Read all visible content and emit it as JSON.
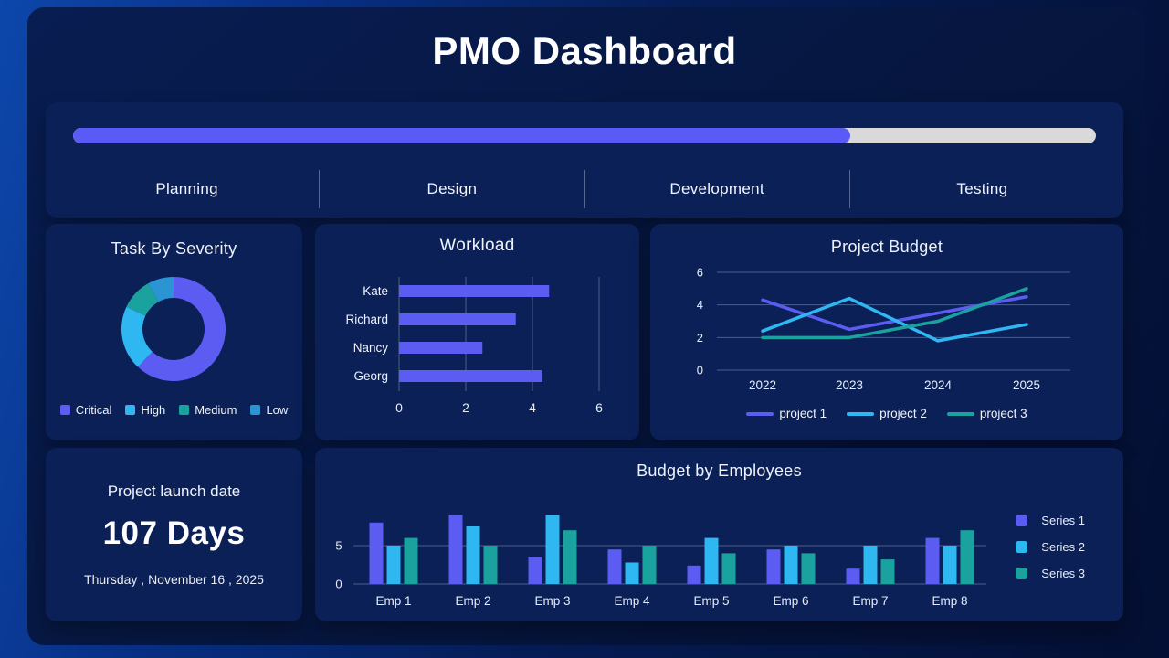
{
  "page": {
    "title": "PMO Dashboard"
  },
  "colors": {
    "purple": "#5c5cf2",
    "cyan": "#2eb7f0",
    "teal": "#1aa39e",
    "low_blue": "#2b95d3",
    "progress_fill": "#5a5af6",
    "progress_track": "#d9d9d9",
    "card_bg": "#0a2057",
    "grid_line": "rgba(255,255,255,0.28)"
  },
  "phase_bar": {
    "progress_percent": 76,
    "phases": [
      {
        "label": "Planning"
      },
      {
        "label": "Design"
      },
      {
        "label": "Development"
      },
      {
        "label": "Testing"
      }
    ]
  },
  "launch_card": {
    "title": "Project launch date",
    "days": "107 Days",
    "date": "Thursday , November 16 , 2025"
  },
  "chart_data": [
    {
      "id": "severity_donut",
      "type": "pie",
      "donut": true,
      "title": "Task By Severity",
      "labels": [
        "Critical",
        "High",
        "Medium",
        "Low"
      ],
      "values": [
        62,
        20,
        10,
        8
      ],
      "colors": [
        "#5c5cf2",
        "#2eb7f0",
        "#1aa39e",
        "#2b95d3"
      ],
      "legend_position": "bottom"
    },
    {
      "id": "workload_bar",
      "type": "bar",
      "orientation": "horizontal",
      "title": "Workload",
      "categories": [
        "Kate",
        "Richard",
        "Nancy",
        "Georg"
      ],
      "values": [
        4.5,
        3.5,
        2.5,
        4.3
      ],
      "bar_color": "#5c5cf2",
      "xlim": [
        0,
        6
      ],
      "x_ticks": [
        0,
        2,
        4,
        6
      ],
      "grid": true
    },
    {
      "id": "project_budget_line",
      "type": "line",
      "title": "Project Budget",
      "x": [
        "2022",
        "2023",
        "2024",
        "2025"
      ],
      "series": [
        {
          "name": "project 1",
          "color": "#5c5cf2",
          "values": [
            4.3,
            2.5,
            3.5,
            4.5
          ]
        },
        {
          "name": "project 2",
          "color": "#2eb7f0",
          "values": [
            2.4,
            4.4,
            1.8,
            2.8
          ]
        },
        {
          "name": "project 3",
          "color": "#1aa39e",
          "values": [
            2.0,
            2.0,
            3.0,
            5.0
          ]
        }
      ],
      "ylim": [
        0,
        6
      ],
      "y_ticks": [
        0,
        2,
        4,
        6
      ],
      "legend_position": "bottom",
      "grid": true
    },
    {
      "id": "employee_budget_bar",
      "type": "bar",
      "orientation": "vertical",
      "title": "Budget by Employees",
      "categories": [
        "Emp 1",
        "Emp 2",
        "Emp 3",
        "Emp 4",
        "Emp 5",
        "Emp 6",
        "Emp 7",
        "Emp 8"
      ],
      "series": [
        {
          "name": "Series 1",
          "color": "#5c5cf2",
          "values": [
            8.0,
            9.0,
            3.5,
            4.5,
            2.4,
            4.5,
            2.0,
            6.0
          ]
        },
        {
          "name": "Series 2",
          "color": "#2eb7f0",
          "values": [
            5.0,
            7.5,
            9.0,
            2.8,
            6.0,
            5.0,
            5.0,
            5.0
          ]
        },
        {
          "name": "Series 3",
          "color": "#1aa39e",
          "values": [
            6.0,
            5.0,
            7.0,
            5.0,
            4.0,
            4.0,
            3.2,
            7.0
          ]
        }
      ],
      "ylim": [
        0,
        9.5
      ],
      "y_ticks": [
        0,
        5
      ],
      "legend_position": "right",
      "grid": true
    }
  ]
}
